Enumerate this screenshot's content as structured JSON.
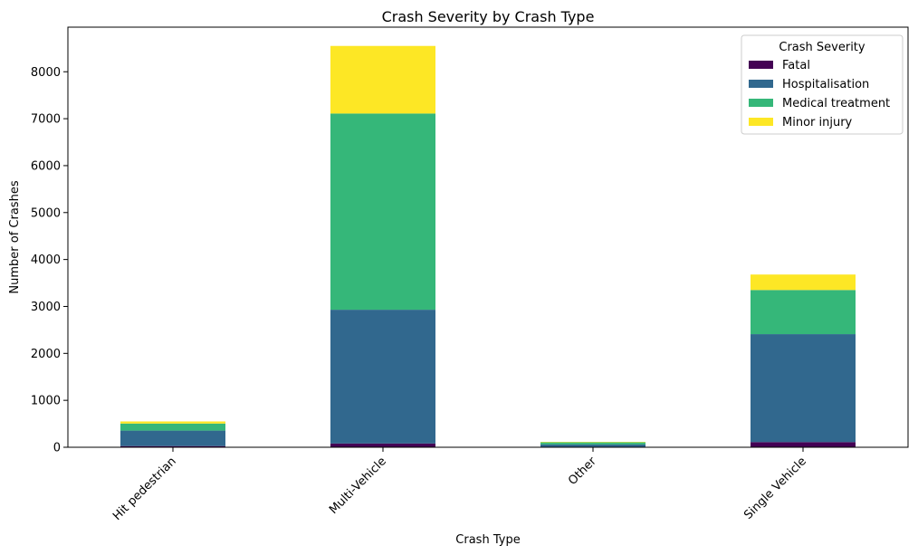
{
  "chart_data": {
    "type": "bar",
    "stacked": true,
    "title": "Crash Severity by Crash Type",
    "xlabel": "Crash Type",
    "ylabel": "Number of Crashes",
    "categories": [
      "Hit pedestrian",
      "Multi-Vehicle",
      "Other",
      "Single Vehicle"
    ],
    "ylim": [
      0,
      8950
    ],
    "yticks": [
      0,
      1000,
      2000,
      3000,
      4000,
      5000,
      6000,
      7000,
      8000
    ],
    "grid": false,
    "legend": {
      "title": "Crash Severity",
      "placement": "top-right"
    },
    "series": [
      {
        "name": "Fatal",
        "color": "#440154",
        "values": [
          25,
          80,
          5,
          110
        ]
      },
      {
        "name": "Hospitalisation",
        "color": "#31688e",
        "values": [
          330,
          2850,
          55,
          2300
        ]
      },
      {
        "name": "Medical treatment",
        "color": "#35b779",
        "values": [
          150,
          4180,
          45,
          940
        ]
      },
      {
        "name": "Minor injury",
        "color": "#fde725",
        "values": [
          45,
          1440,
          10,
          330
        ]
      }
    ]
  }
}
